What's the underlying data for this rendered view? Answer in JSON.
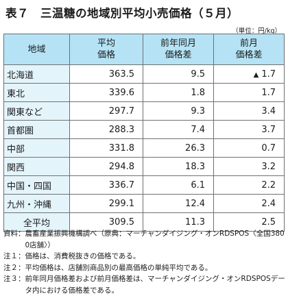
{
  "title": "表７　三温糖の地域別平均小売価格（５月）",
  "unit": "（単位：円/kg）",
  "table": {
    "headers": {
      "region": "地域",
      "avg_price": "平均\n価格",
      "yoy_diff": "前年同月\n価格差",
      "mom_diff": "前月\n価格差"
    },
    "rows": [
      {
        "region": "北海道",
        "avg_price": "363.5",
        "yoy_diff": "9.5",
        "mom_arrow": "▲",
        "mom_diff": "1.7"
      },
      {
        "region": "東北",
        "avg_price": "339.6",
        "yoy_diff": "1.8",
        "mom_arrow": "",
        "mom_diff": "1.7"
      },
      {
        "region": "関東など",
        "avg_price": "297.7",
        "yoy_diff": "9.3",
        "mom_arrow": "",
        "mom_diff": "3.4"
      },
      {
        "region": "首都圏",
        "avg_price": "288.3",
        "yoy_diff": "7.4",
        "mom_arrow": "",
        "mom_diff": "3.7"
      },
      {
        "region": "中部",
        "avg_price": "331.8",
        "yoy_diff": "26.3",
        "mom_arrow": "",
        "mom_diff": "0.7"
      },
      {
        "region": "関西",
        "avg_price": "294.8",
        "yoy_diff": "18.3",
        "mom_arrow": "",
        "mom_diff": "3.2"
      },
      {
        "region": "中国・四国",
        "avg_price": "336.7",
        "yoy_diff": "6.1",
        "mom_arrow": "",
        "mom_diff": "2.2"
      },
      {
        "region": "九州・沖縄",
        "avg_price": "299.1",
        "yoy_diff": "12.4",
        "mom_arrow": "",
        "mom_diff": "2.4"
      },
      {
        "region": "全平均",
        "avg_price": "309.5",
        "yoy_diff": "11.3",
        "mom_arrow": "",
        "mom_diff": "2.5"
      }
    ]
  },
  "notes": [
    {
      "label": "資料：",
      "text": "農畜産業振興機構調べ（原典：マーチャンダイジング・オンRDSPOS〈全国3800店舗〉）"
    },
    {
      "label": "注１：",
      "text": "価格は、消費税抜きの価格である。"
    },
    {
      "label": "注２：",
      "text": "平均価格は、店舗別商品別の最高価格の単純平均である。"
    },
    {
      "label": "注３：",
      "text": "前年同月価格差および前月価格差は、マーチャンダイジング・オンRDSPOSデータ内における価格差である。"
    }
  ],
  "colors": {
    "header_bg": "#b5e3f5",
    "row_header_bg": "#e4f4fb",
    "border": "#6f6f6f"
  }
}
